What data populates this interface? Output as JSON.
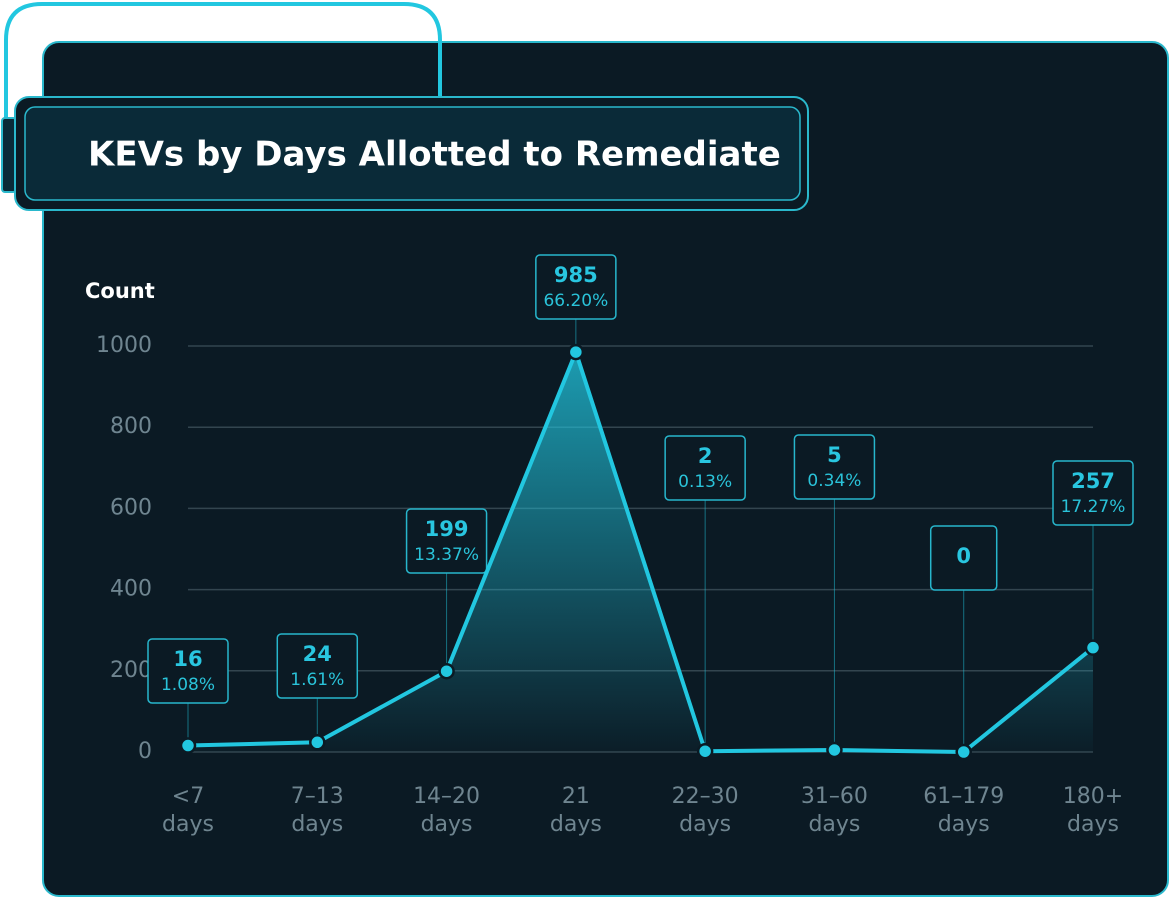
{
  "chart_data": {
    "type": "line",
    "title": "KEVs by Days Allotted to Remediate",
    "y_label": "Count",
    "categories": [
      [
        "<7",
        "days"
      ],
      [
        "7–13",
        "days"
      ],
      [
        "14–20",
        "days"
      ],
      [
        "21",
        "days"
      ],
      [
        "22–30",
        "days"
      ],
      [
        "31–60",
        "days"
      ],
      [
        "61–179",
        "days"
      ],
      [
        "180+",
        "days"
      ]
    ],
    "values": [
      16,
      24,
      199,
      985,
      2,
      5,
      0,
      257
    ],
    "share_labels": [
      "1.08%",
      "1.61%",
      "13.37%",
      "66.20%",
      "0.13%",
      "0.34%",
      null,
      "17.27%"
    ],
    "color": "#22c7e0",
    "ylim": [
      0,
      1000
    ],
    "yticks": [
      0,
      200,
      400,
      600,
      800,
      1000
    ],
    "grid": true
  }
}
